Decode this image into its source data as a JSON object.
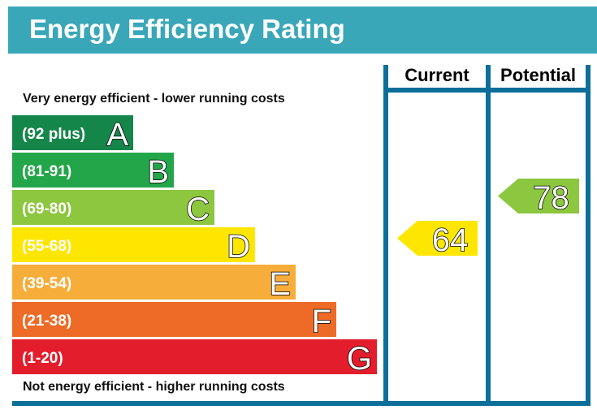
{
  "chart_data": {
    "type": "bar",
    "title": "Energy Efficiency Rating",
    "top_note": "Very energy efficient - lower running costs",
    "bottom_note": "Not energy efficient - higher running costs",
    "columns": [
      "Current",
      "Potential"
    ],
    "bands": [
      {
        "range": "(92 plus)",
        "letter": "A",
        "color": "#14864a"
      },
      {
        "range": "(81-91)",
        "letter": "B",
        "color": "#23a64a"
      },
      {
        "range": "(69-80)",
        "letter": "C",
        "color": "#8dc63f"
      },
      {
        "range": "(55-68)",
        "letter": "D",
        "color": "#ffe600"
      },
      {
        "range": "(39-54)",
        "letter": "E",
        "color": "#f7ad3a"
      },
      {
        "range": "(21-38)",
        "letter": "F",
        "color": "#ee6b27"
      },
      {
        "range": "(1-20)",
        "letter": "G",
        "color": "#e31d2c"
      }
    ],
    "current": {
      "value": 64,
      "band": "D",
      "color": "#ffe600"
    },
    "potential": {
      "value": 78,
      "band": "C",
      "color": "#8dc63f"
    }
  },
  "colors": {
    "header": "#3aa7b9",
    "border": "#0b6f99"
  }
}
